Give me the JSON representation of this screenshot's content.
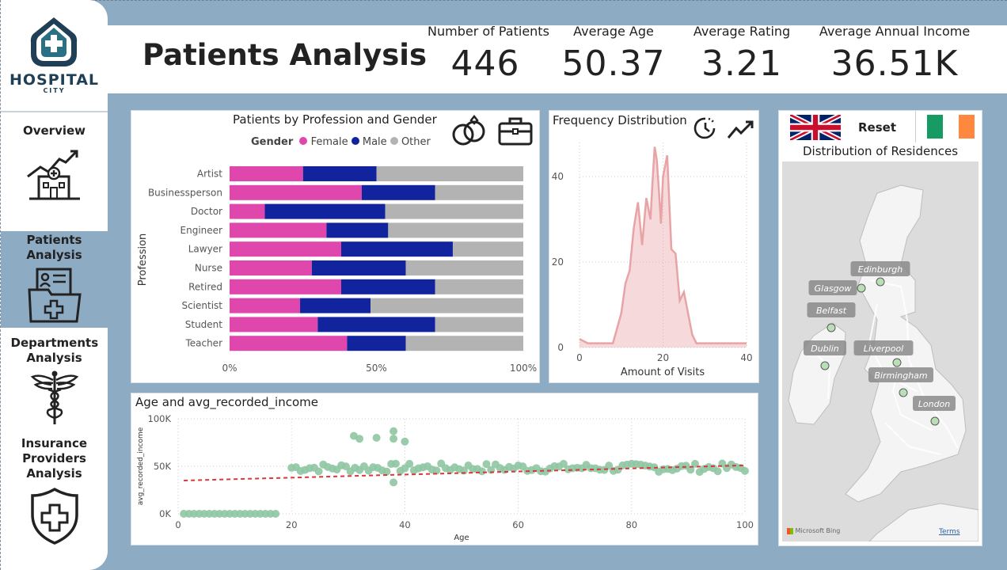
{
  "brand": {
    "name": "HOSPITAL",
    "sub": "CITY"
  },
  "nav": [
    {
      "label": "Overview",
      "active": false
    },
    {
      "label": "Patients Analysis",
      "active": true
    },
    {
      "label": "Departments Analysis",
      "active": false
    },
    {
      "label": "Insurance Providers Analysis",
      "active": false
    }
  ],
  "page_title": "Patients Analysis",
  "kpis": [
    {
      "label": "Number of Patients",
      "value": "446"
    },
    {
      "label": "Average Age",
      "value": "50.37"
    },
    {
      "label": "Average Rating",
      "value": "3.21"
    },
    {
      "label": "Average Annual Income",
      "value": "36.51K"
    }
  ],
  "colors": {
    "female": "#e047ad",
    "male": "#12239e",
    "other": "#b3b3b3",
    "freq": "#e8a3a6",
    "scatter": "#8fc7a3",
    "trend": "#d9383a"
  },
  "map": {
    "reset_label": "Reset",
    "title": "Distribution of Residences",
    "cities": [
      "Edinburgh",
      "Glasgow",
      "Belfast",
      "Dublin",
      "Liverpool",
      "Birmingham",
      "London"
    ],
    "attribution": "Microsoft Bing",
    "terms": "Terms"
  },
  "chart_data": [
    {
      "type": "bar",
      "stacked": "100%",
      "orientation": "horizontal",
      "title": "Patients by Profession and Gender",
      "legend_title": "Gender",
      "ylabel": "Profession",
      "categories": [
        "Artist",
        "Businessperson",
        "Doctor",
        "Engineer",
        "Lawyer",
        "Nurse",
        "Retired",
        "Scientist",
        "Student",
        "Teacher"
      ],
      "series": [
        {
          "name": "Female",
          "values": [
            25,
            45,
            12,
            33,
            38,
            28,
            38,
            24,
            30,
            40
          ]
        },
        {
          "name": "Male",
          "values": [
            25,
            25,
            41,
            21,
            38,
            32,
            32,
            24,
            40,
            20
          ]
        },
        {
          "name": "Other",
          "values": [
            50,
            30,
            47,
            46,
            24,
            40,
            30,
            52,
            30,
            40
          ]
        }
      ],
      "xticks": [
        "0%",
        "50%",
        "100%"
      ]
    },
    {
      "type": "area",
      "title": "Frequency Distribution",
      "xlabel": "Amount of Visits",
      "x": [
        0,
        2,
        4,
        6,
        8,
        10,
        11,
        12,
        13,
        14,
        15,
        16,
        17,
        17.5,
        18,
        18.5,
        19,
        19.5,
        20,
        21,
        22,
        23,
        24,
        25,
        26,
        27,
        28,
        30,
        32,
        34,
        36,
        38,
        40
      ],
      "y": [
        2,
        1,
        1,
        1,
        1,
        8,
        15,
        18,
        28,
        34,
        24,
        35,
        30,
        39,
        47,
        44,
        37,
        29,
        40,
        45,
        23,
        22,
        11,
        13,
        8,
        3,
        1,
        1,
        1,
        1,
        1,
        1,
        1
      ],
      "xlim": [
        0,
        40
      ],
      "ylim": [
        0,
        48
      ],
      "yticks": [
        "0",
        "20",
        "40"
      ],
      "xticks": [
        "0",
        "20",
        "40"
      ]
    },
    {
      "type": "scatter",
      "title": "Age and avg_recorded_income",
      "xlabel": "Age",
      "ylabel": "avg_recorded_income",
      "xlim": [
        0,
        100
      ],
      "ylim": [
        0,
        100000
      ],
      "xticks": [
        "0",
        "20",
        "40",
        "60",
        "80",
        "100"
      ],
      "yticks": [
        "0K",
        "50K",
        "100K"
      ],
      "trend": {
        "from": [
          1,
          35000
        ],
        "to": [
          100,
          51000
        ]
      },
      "outliers": [
        {
          "x": 31,
          "y": 82000
        },
        {
          "x": 32,
          "y": 79000
        },
        {
          "x": 35,
          "y": 80000
        },
        {
          "x": 38,
          "y": 87000
        },
        {
          "x": 38,
          "y": 79000
        },
        {
          "x": 40,
          "y": 76000
        },
        {
          "x": 38,
          "y": 33000
        }
      ]
    }
  ]
}
